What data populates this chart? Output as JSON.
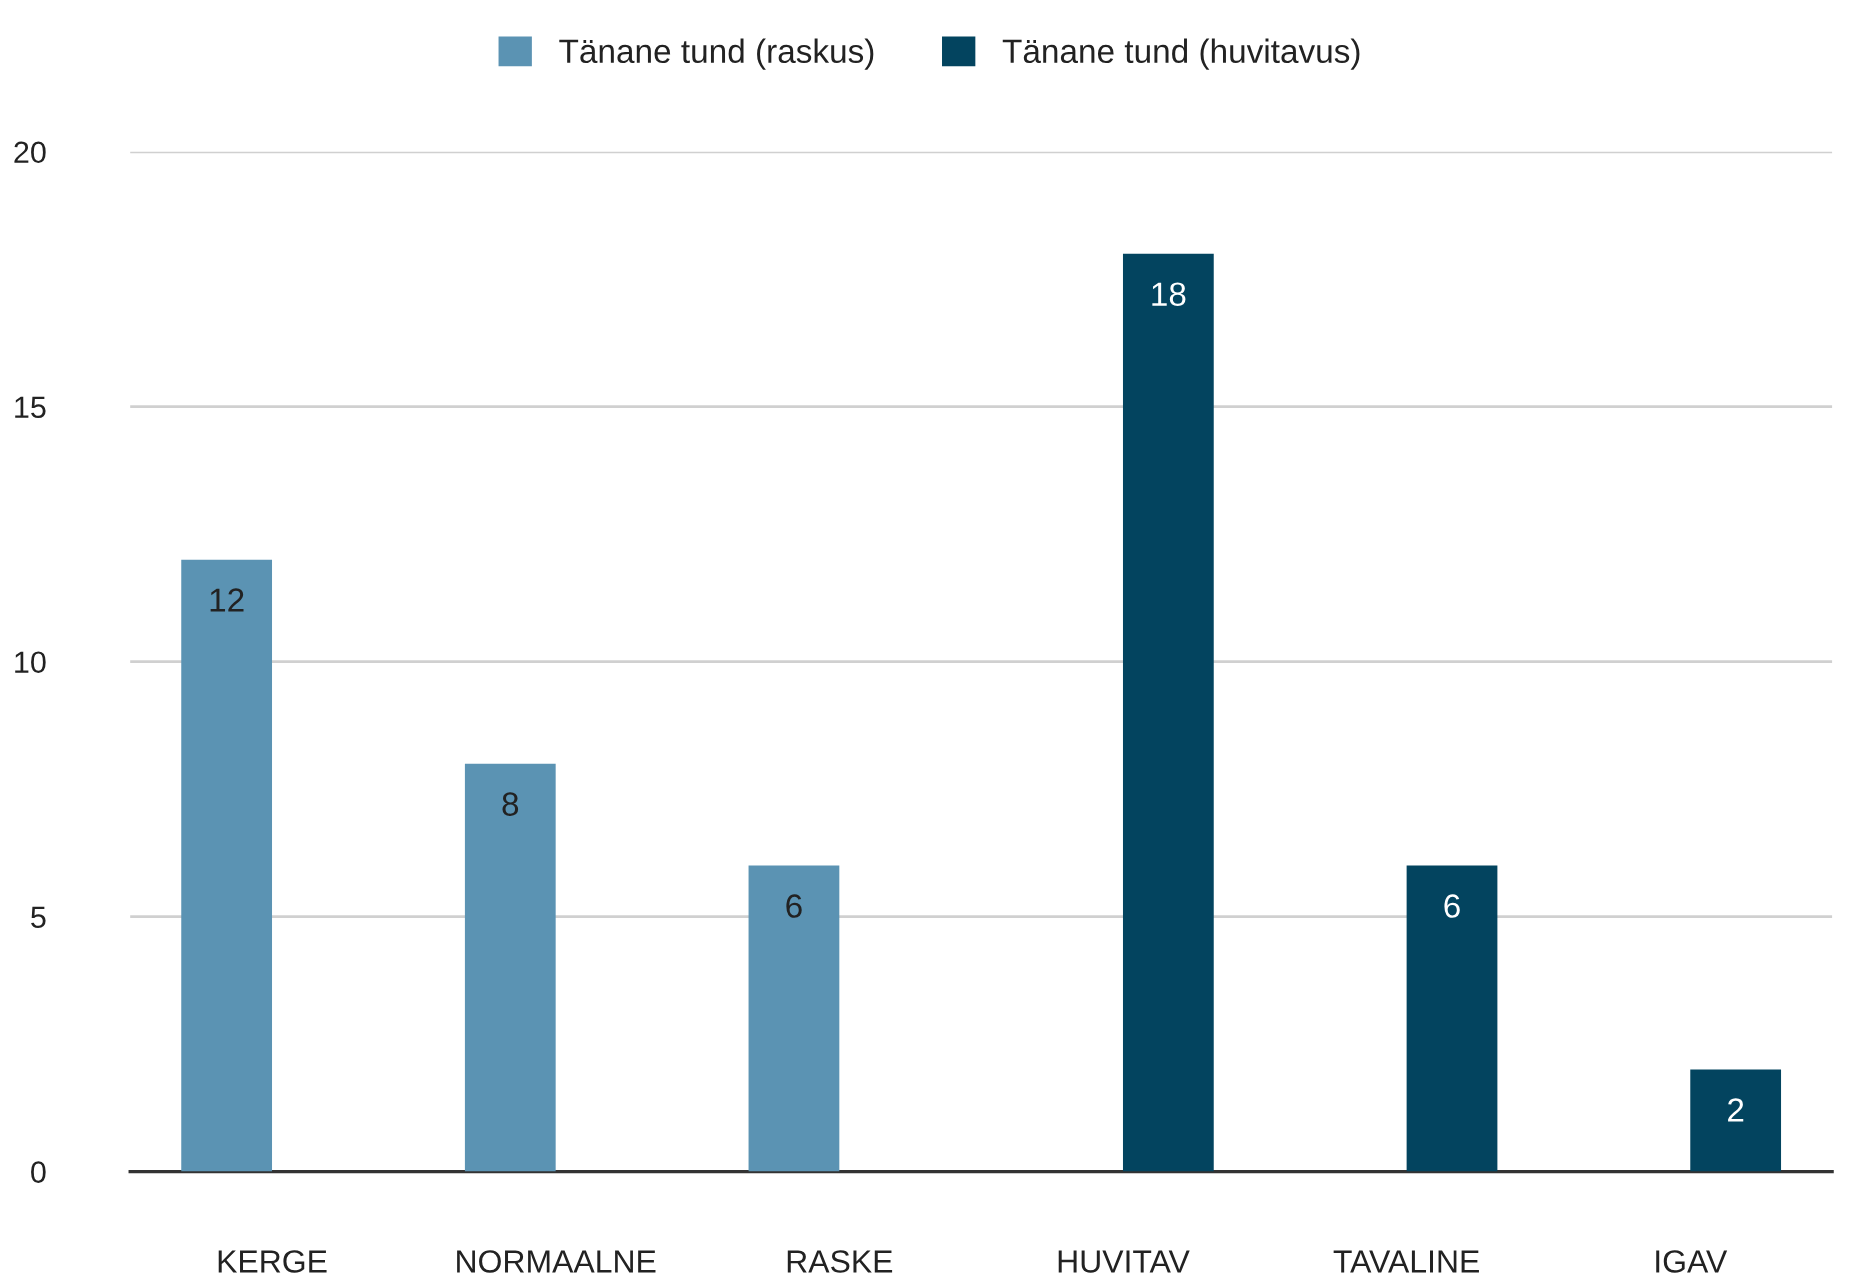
{
  "chart_data": {
    "type": "bar",
    "categories": [
      "KERGE",
      "NORMAALNE",
      "RASKE",
      "HUVITAV",
      "TAVALINE",
      "IGAV"
    ],
    "series": [
      {
        "name": "Tänane tund (raskus)",
        "color": "#5b93b3",
        "values": [
          12,
          8,
          6,
          null,
          null,
          null
        ]
      },
      {
        "name": "Tänane tund (huvitavus)",
        "color": "#03445f",
        "values": [
          null,
          null,
          null,
          18,
          6,
          2
        ]
      }
    ],
    "ylim": [
      0,
      20
    ],
    "yticks": [
      0,
      5,
      10,
      15,
      20
    ],
    "grid": "y",
    "legend": "top",
    "data_labels": true
  }
}
